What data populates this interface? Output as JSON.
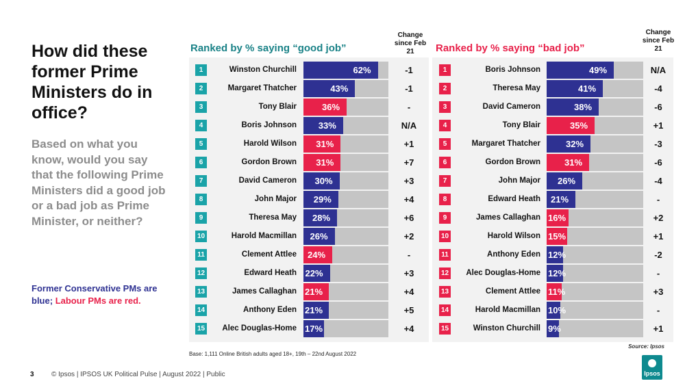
{
  "title": "How did these former Prime Ministers do in office?",
  "subtitle": "Based on what you know, would you say that the following Prime Ministers did a good job or a bad job as Prime Minister, or neither?",
  "legend_note": {
    "conservative": "Former Conservative PMs are blue;",
    "labour": "Labour PMs are red."
  },
  "change_header": "Change since Feb 21",
  "colors": {
    "conservative": "#2e3192",
    "labour": "#e8214a",
    "good_title": "#1a8287",
    "bad_title": "#e8214a",
    "rank_good": "#1aa3a8",
    "rank_bad": "#e8214a",
    "track": "#c5c5c5"
  },
  "chart_data": [
    {
      "type": "bar",
      "title": "Ranked by % saying “good job”",
      "categories": [
        "Winston Churchill",
        "Margaret Thatcher",
        "Tony Blair",
        "Boris Johnson",
        "Harold Wilson",
        "Gordon Brown",
        "David Cameron",
        "John Major",
        "Theresa May",
        "Harold Macmillan",
        "Clement Attlee",
        "Edward Heath",
        "James Callaghan",
        "Anthony Eden",
        "Alec Douglas-Home"
      ],
      "values": [
        62,
        43,
        36,
        33,
        31,
        31,
        30,
        29,
        28,
        26,
        24,
        22,
        21,
        21,
        17
      ],
      "labels": [
        "62%",
        "43%",
        "36%",
        "33%",
        "31%",
        "31%",
        "30%",
        "29%",
        "28%",
        "26%",
        "24%",
        "22%",
        "21%",
        "21%",
        "17%"
      ],
      "party": [
        "con",
        "con",
        "lab",
        "con",
        "lab",
        "lab",
        "con",
        "con",
        "con",
        "con",
        "lab",
        "con",
        "lab",
        "con",
        "con"
      ],
      "change": [
        "-1",
        "-1",
        "-",
        "N/A",
        "+1",
        "+7",
        "+3",
        "+4",
        "+6",
        "+2",
        "-",
        "+3",
        "+4",
        "+5",
        "+4"
      ],
      "xlim": [
        0,
        100
      ]
    },
    {
      "type": "bar",
      "title": "Ranked by % saying “bad job”",
      "categories": [
        "Boris Johnson",
        "Theresa May",
        "David Cameron",
        "Tony Blair",
        "Margaret Thatcher",
        "Gordon Brown",
        "John Major",
        "Edward Heath",
        "James Callaghan",
        "Harold Wilson",
        "Anthony Eden",
        "Alec Douglas-Home",
        "Clement Attlee",
        "Harold Macmillan",
        "Winston Churchill"
      ],
      "values": [
        49,
        41,
        38,
        35,
        32,
        31,
        26,
        21,
        16,
        15,
        12,
        12,
        11,
        10,
        9
      ],
      "labels": [
        "49%",
        "41%",
        "38%",
        "35%",
        "32%",
        "31%",
        "26%",
        "21%",
        "16%",
        "15%",
        "12%",
        "12%",
        "11%",
        "10%",
        "9%"
      ],
      "party": [
        "con",
        "con",
        "con",
        "lab",
        "con",
        "lab",
        "con",
        "con",
        "lab",
        "lab",
        "con",
        "con",
        "lab",
        "con",
        "con"
      ],
      "change": [
        "N/A",
        "-4",
        "-6",
        "+1",
        "-3",
        "-6",
        "-4",
        "-",
        "+2",
        "+1",
        "-2",
        "-",
        "+3",
        "-",
        "+1"
      ],
      "xlim": [
        0,
        100
      ]
    }
  ],
  "base": "Base: 1,111 Online British adults aged 18+, 19th – 22nd August 2022",
  "source": "Source: Ipsos",
  "footer": {
    "page": "3",
    "text": "© Ipsos  |  IPSOS UK Political Pulse | August 2022 | Public"
  },
  "logo_text": "Ipsos"
}
